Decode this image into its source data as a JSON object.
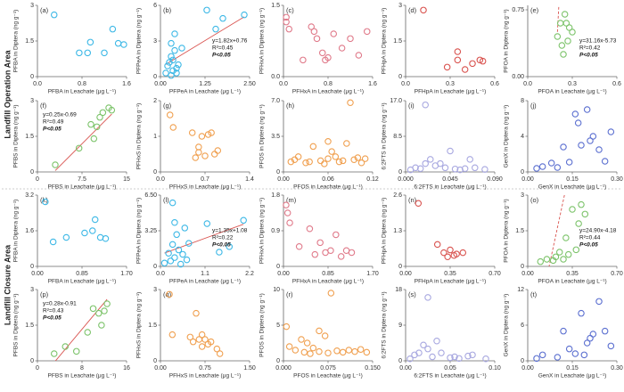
{
  "row_labels": [
    "Landfill Operation Area",
    "Landfill Closure Area"
  ],
  "chart_data": [
    {
      "type": "scatter",
      "label": "(a)",
      "xlabel": "PFBA in Leachate (μg L⁻¹)",
      "ylabel": "PFBA in Diptera (ng g⁻¹)",
      "color": "#3db8e6",
      "x": [
        0.3,
        0.75,
        0.9,
        0.95,
        1.2,
        1.35,
        1.45,
        1.55
      ],
      "values": [
        2.6,
        1.0,
        1.0,
        1.45,
        1.0,
        2.0,
        1.4,
        1.35
      ],
      "xlim": [
        0,
        1.6
      ],
      "xticks": [
        {
          "value": 0,
          "label": "0.0"
        },
        0.8,
        1.6
      ],
      "ylim": [
        0,
        3
      ],
      "yticks": [
        0,
        1.5,
        3
      ]
    },
    {
      "type": "scatter",
      "label": "(b)",
      "xlabel": "PFPeA in Leachate (μg L⁻¹)",
      "ylabel": "PFPeA in Diptera (ng g⁻¹)",
      "color": "#3db8e6",
      "x": [
        0.15,
        0.2,
        0.25,
        0.3,
        0.3,
        0.35,
        0.4,
        0.45,
        0.5,
        0.3,
        0.4,
        0.6,
        1.3,
        1.55,
        1.75,
        2.35,
        0.35,
        0.45
      ],
      "values": [
        0.3,
        0.9,
        1.2,
        0.1,
        1.7,
        0.5,
        2.2,
        0.3,
        1.0,
        2.8,
        3.6,
        2.4,
        5.6,
        4.0,
        4.9,
        5.2,
        1.4,
        0.7
      ],
      "xlim": [
        0,
        2.5
      ],
      "xticks": [
        {
          "value": 0,
          "label": "0.00"
        },
        1.25,
        {
          "value": 2.5,
          "label": "2.50"
        }
      ],
      "ylim": [
        0,
        6
      ],
      "yticks": [
        0,
        3,
        6
      ],
      "fit": {
        "slope": 1.82,
        "intercept": 0.76
      },
      "annotations": [
        "y=1.82x+0.76",
        "R²=0.45",
        "P<0.05"
      ]
    },
    {
      "type": "scatter",
      "label": "(c)",
      "xlabel": "PFHxA in Leachate (μg L⁻¹)",
      "ylabel": "PFHxA in Diptera (ng g⁻¹)",
      "color": "#e07a8a",
      "x": [
        0.05,
        0.05,
        0.1,
        0.35,
        0.55,
        0.6,
        0.7,
        0.8,
        0.75,
        0.9,
        1.05,
        1.2,
        1.35,
        1.5,
        0.5
      ],
      "values": [
        1.25,
        1.15,
        1.0,
        0.35,
        0.95,
        0.8,
        0.5,
        0.4,
        0.35,
        0.9,
        0.6,
        0.8,
        0.45,
        0.95,
        1.05
      ],
      "xlim": [
        0,
        1.6
      ],
      "xticks": [
        {
          "value": 0,
          "label": "0.0"
        },
        0.8,
        1.6
      ],
      "ylim": [
        0,
        1.5
      ],
      "yticks": [
        {
          "value": 0,
          "label": "0.0"
        },
        1.5
      ]
    },
    {
      "type": "scatter",
      "label": "(d)",
      "xlabel": "PFHpA in Leachate (μg L⁻¹)",
      "ylabel": "PFHpA in Diptera (ng g⁻¹)",
      "color": "#d9534f",
      "x": [
        0.12,
        0.28,
        0.35,
        0.35,
        0.4,
        0.45,
        0.5,
        0.52
      ],
      "values": [
        2.8,
        0.4,
        1.05,
        0.7,
        0.3,
        0.55,
        0.7,
        0.65
      ],
      "xlim": [
        0,
        0.6
      ],
      "xticks": [
        {
          "value": 0,
          "label": "0.0"
        },
        0.3,
        0.6
      ],
      "ylim": [
        0,
        3
      ],
      "yticks": [
        0,
        1.5,
        3
      ]
    },
    {
      "type": "scatter",
      "label": "(e)",
      "xlabel": "PFOA in Leachate (μg L⁻¹)",
      "ylabel": "PFOA in Diptera (ng g⁻¹)",
      "color": "#7cc36a",
      "x": [
        0.2,
        0.22,
        0.23,
        0.25,
        0.27,
        0.28,
        0.3,
        0.24,
        0.26
      ],
      "values": [
        0.45,
        0.6,
        0.35,
        0.7,
        0.4,
        0.55,
        0.5,
        0.25,
        0.6
      ],
      "xlim": [
        0,
        0.6
      ],
      "xticks": [
        {
          "value": 0,
          "label": "0.0"
        },
        0.3,
        0.6
      ],
      "ylim": [
        0,
        0.8
      ],
      "yticks": [
        {
          "value": 0,
          "label": "0.00"
        },
        0.75
      ],
      "fit": {
        "slope": 31.16,
        "intercept": -5.73
      },
      "annotations": [
        "y=31.16x-5.73",
        "R²=0.42",
        "P<0.05"
      ]
    },
    {
      "type": "scatter",
      "label": "(f)",
      "xlabel": "PFBS in Leachate (μg L⁻¹)",
      "ylabel": "PFBS in Diptera (ng g⁻¹)",
      "color": "#7cc36a",
      "x": [
        3,
        7,
        9.5,
        10,
        10.5,
        11,
        12,
        12.5,
        9
      ],
      "values": [
        0.3,
        1.0,
        1.4,
        1.9,
        2.3,
        2.5,
        2.7,
        2.6,
        2.0
      ],
      "xlim": [
        0,
        15
      ],
      "xticks": [
        0,
        7.5,
        15
      ],
      "ylim": [
        0,
        3
      ],
      "yticks": [
        0,
        1.5,
        3
      ],
      "fit": {
        "slope": 0.25,
        "intercept": -0.69
      },
      "annotations": [
        "y=0.25x-0.69",
        "R²=0.49",
        "P<0.05"
      ]
    },
    {
      "type": "scatter",
      "label": "(g)",
      "xlabel": "PFHxS in Leachate (μg L⁻¹)",
      "ylabel": "PFHxS in Diptera (ng g⁻¹)",
      "color": "#f0a050",
      "x": [
        0.15,
        0.2,
        0.5,
        0.55,
        0.6,
        0.65,
        0.7,
        0.75,
        0.8,
        0.85,
        0.9,
        0.6
      ],
      "values": [
        1.6,
        1.25,
        1.1,
        0.4,
        0.7,
        1.0,
        0.45,
        1.05,
        1.1,
        0.5,
        0.6,
        0.55
      ],
      "xlim": [
        0,
        1.4
      ],
      "xticks": [
        {
          "value": 0,
          "label": "0.0"
        },
        0.7,
        1.4
      ],
      "ylim": [
        0,
        2
      ],
      "yticks": [
        0,
        1,
        2
      ]
    },
    {
      "type": "scatter",
      "label": "(h)",
      "xlabel": "PFOS in Leachate (μg L⁻¹)",
      "ylabel": "PFOS in Diptera (ng g⁻¹)",
      "color": "#f0a050",
      "x": [
        0.01,
        0.015,
        0.02,
        0.03,
        0.035,
        0.04,
        0.05,
        0.055,
        0.06,
        0.065,
        0.07,
        0.075,
        0.08,
        0.085,
        0.09,
        0.095,
        0.1,
        0.105,
        0.11,
        0.06
      ],
      "values": [
        1,
        1.2,
        1.5,
        0.9,
        1.0,
        2.5,
        1.1,
        0.8,
        1.3,
        2.0,
        1.5,
        1.0,
        1.1,
        2.8,
        6.8,
        1.2,
        1.4,
        0.9,
        1.3,
        3.0
      ],
      "xlim": [
        0,
        0.12
      ],
      "xticks": [
        {
          "value": 0,
          "label": "0.00"
        },
        0.06,
        0.12
      ],
      "ylim": [
        0,
        7
      ],
      "yticks": [
        0,
        3.5,
        {
          "value": 7,
          "label": "7.0"
        }
      ]
    },
    {
      "type": "scatter",
      "label": "(i)",
      "xlabel": "6:2FTS in Leachate (μg L⁻¹)",
      "ylabel": "6:2FTS in Diptera (ng g⁻¹)",
      "color": "#a8a8e0",
      "x": [
        0.005,
        0.01,
        0.015,
        0.02,
        0.025,
        0.03,
        0.035,
        0.04,
        0.045,
        0.05,
        0.055,
        0.06,
        0.065,
        0.07,
        0.08,
        0.02
      ],
      "values": [
        0.5,
        1,
        0.8,
        2,
        3,
        1.5,
        2,
        1,
        5,
        0.7,
        0.5,
        0.8,
        3,
        1,
        0.6,
        16
      ],
      "xlim": [
        0,
        0.09
      ],
      "xticks": [
        {
          "value": 0,
          "label": "0.000"
        },
        0.045,
        {
          "value": 0.09,
          "label": "0.090"
        }
      ],
      "ylim": [
        0,
        17
      ],
      "yticks": [
        0,
        8.5,
        {
          "value": 17,
          "label": "17.0"
        }
      ]
    },
    {
      "type": "scatter",
      "label": "(j)",
      "xlabel": "GenX in Leachate (μg L⁻¹)",
      "ylabel": "GenX in Diptera (ng g⁻¹)",
      "color": "#5b6fd0",
      "x": [
        0.03,
        0.05,
        0.08,
        0.1,
        0.12,
        0.14,
        0.16,
        0.18,
        0.2,
        0.22,
        0.24,
        0.26,
        0.28,
        0.17,
        0.21
      ],
      "values": [
        0.4,
        0.6,
        1,
        0.5,
        2.8,
        1.1,
        6.5,
        3,
        7,
        4,
        2.5,
        1.2,
        4.5,
        5.5,
        3.5
      ],
      "xlim": [
        0,
        0.3
      ],
      "xticks": [
        {
          "value": 0,
          "label": "0.00"
        },
        0.15,
        {
          "value": 0.3,
          "label": "0.30"
        }
      ],
      "ylim": [
        0,
        8
      ],
      "yticks": [
        0,
        4,
        8
      ]
    },
    {
      "type": "scatter",
      "label": "(k)",
      "xlabel": "PFBA in Leachate (μg L⁻¹)",
      "ylabel": "PFBA in Diptera (ng g⁻¹)",
      "color": "#3db8e6",
      "x": [
        0.15,
        0.3,
        0.55,
        0.9,
        1.05,
        1.2,
        1.3,
        1.1
      ],
      "values": [
        2.9,
        1.1,
        1.3,
        1.5,
        1.6,
        1.3,
        1.25,
        2.1
      ],
      "xlim": [
        0,
        1.7
      ],
      "xticks": [
        {
          "value": 0,
          "label": "0.00"
        },
        0.85,
        {
          "value": 1.7,
          "label": "1.70"
        }
      ],
      "ylim": [
        0,
        3.2
      ],
      "yticks": [
        0,
        1.6,
        3.2
      ]
    },
    {
      "type": "scatter",
      "label": "(l)",
      "xlabel": "PFPeA in Leachate (μg L⁻¹)",
      "ylabel": "PFPeA in Diptera (ng g⁻¹)",
      "color": "#3db8e6",
      "x": [
        0.1,
        0.2,
        0.25,
        0.3,
        0.35,
        0.4,
        0.45,
        0.5,
        0.55,
        0.6,
        0.65,
        0.7,
        0.35,
        1.15,
        1.45,
        1.7,
        2.05,
        0.3
      ],
      "values": [
        0.3,
        1.2,
        0.5,
        2.0,
        0.8,
        2.9,
        1.5,
        0.2,
        1.1,
        3.5,
        0.6,
        2.1,
        4.0,
        3.9,
        1.3,
        1.8,
        4.2,
        5.8
      ],
      "xlim": [
        0,
        2.2
      ],
      "xticks": [
        {
          "value": 0,
          "label": "0.0"
        },
        1.1,
        2.2
      ],
      "ylim": [
        0,
        6.5
      ],
      "yticks": [
        0,
        3.25,
        {
          "value": 6.5,
          "label": "6.50"
        }
      ],
      "fit": {
        "slope": 1.35,
        "intercept": 1.08
      },
      "annotations": [
        "y=1.35x+1.08",
        "R²=0.22",
        "P<0.05"
      ]
    },
    {
      "type": "scatter",
      "label": "(m)",
      "xlabel": "PFHxA in Leachate (μg L⁻¹)",
      "ylabel": "PFHxA in Diptera (ng g⁻¹)",
      "color": "#e07a8a",
      "x": [
        0.05,
        0.08,
        0.12,
        0.3,
        0.5,
        0.6,
        0.7,
        0.8,
        0.9,
        1.0,
        1.1,
        1.2,
        1.3
      ],
      "values": [
        1.55,
        1.35,
        1.1,
        0.5,
        0.95,
        0.3,
        0.6,
        0.35,
        0.4,
        0.8,
        0.25,
        0.4,
        0.35
      ],
      "xlim": [
        0,
        1.7
      ],
      "xticks": [
        {
          "value": 0,
          "label": "0.00"
        },
        0.85,
        {
          "value": 1.7,
          "label": "1.70"
        }
      ],
      "ylim": [
        0,
        1.8
      ],
      "yticks": [
        0,
        0.9,
        1.8
      ]
    },
    {
      "type": "scatter",
      "label": "(n)",
      "xlabel": "PFHpA in Leachate (μg L⁻¹)",
      "ylabel": "PFHpA in Diptera (ng g⁻¹)",
      "color": "#d9534f",
      "x": [
        0.1,
        0.25,
        0.3,
        0.33,
        0.35,
        0.38,
        0.4,
        0.45
      ],
      "values": [
        2.3,
        0.8,
        0.5,
        0.35,
        0.6,
        0.4,
        0.45,
        0.5
      ],
      "xlim": [
        0,
        0.7
      ],
      "xticks": [
        {
          "value": 0,
          "label": "0.00"
        },
        0.35,
        {
          "value": 0.7,
          "label": "0.70"
        }
      ],
      "ylim": [
        0,
        2.6
      ],
      "yticks": [
        0,
        1.3,
        2.6
      ]
    },
    {
      "type": "scatter",
      "label": "(o)",
      "xlabel": "PFOA in Leachate (μg L⁻¹)",
      "ylabel": "PFOA in Diptera (ng g⁻¹)",
      "color": "#7cc36a",
      "x": [
        0.1,
        0.15,
        0.2,
        0.22,
        0.25,
        0.28,
        0.3,
        0.32,
        0.35,
        0.4,
        0.45,
        0.38,
        0.42
      ],
      "values": [
        0.2,
        0.3,
        0.25,
        0.4,
        0.6,
        0.3,
        1.2,
        0.5,
        2.4,
        1.8,
        2.2,
        0.7,
        2.6
      ],
      "xlim": [
        0,
        0.7
      ],
      "xticks": [
        {
          "value": 0,
          "label": "0.00"
        },
        0.35,
        {
          "value": 0.7,
          "label": "0.70"
        }
      ],
      "ylim": [
        0,
        3
      ],
      "yticks": [
        0,
        1.5,
        3
      ],
      "fit": {
        "slope": 24.9,
        "intercept": -4.18
      },
      "annotations": [
        "y=24.90x-4.18",
        "R²=0.44",
        "P<0.05"
      ]
    },
    {
      "type": "scatter",
      "label": "(p)",
      "xlabel": "PFBS in Leachate (μg L⁻¹)",
      "ylabel": "PFBS in Diptera (ng g⁻¹)",
      "color": "#7cc36a",
      "x": [
        3,
        5,
        7,
        9,
        10,
        11,
        12,
        12.5,
        11.5
      ],
      "values": [
        0.3,
        0.6,
        0.4,
        1.2,
        2.2,
        2.0,
        2.1,
        2.4,
        1.5
      ],
      "xlim": [
        0,
        16
      ],
      "xticks": [
        0,
        8,
        16
      ],
      "ylim": [
        0,
        3
      ],
      "yticks": [
        0,
        1.5,
        3
      ],
      "fit": {
        "slope": 0.28,
        "intercept": -0.91
      },
      "annotations": [
        "y=0.28x-0.91",
        "R²=0.43",
        "P<0.05"
      ]
    },
    {
      "type": "scatter",
      "label": "(q)",
      "xlabel": "PFHxS in Leachate (μg L⁻¹)",
      "ylabel": "PFHxS in Diptera (ng g⁻¹)",
      "color": "#f0a050",
      "x": [
        0.15,
        0.2,
        0.5,
        0.55,
        0.6,
        0.65,
        0.7,
        0.75,
        0.8,
        0.85,
        0.95,
        1.0,
        0.7
      ],
      "values": [
        2.8,
        1.1,
        1.0,
        0.8,
        2.0,
        0.9,
        1.1,
        0.9,
        0.7,
        0.8,
        0.5,
        0.3,
        0.6
      ],
      "xlim": [
        0,
        1.5
      ],
      "xticks": [
        {
          "value": 0,
          "label": "0.00"
        },
        0.75,
        {
          "value": 1.5,
          "label": "1.50"
        }
      ],
      "ylim": [
        0,
        3
      ],
      "yticks": [
        0,
        1.5,
        3
      ]
    },
    {
      "type": "scatter",
      "label": "(r)",
      "xlabel": "PFOS in Leachate (μg L⁻¹)",
      "ylabel": "PFOS in Diptera (ng g⁻¹)",
      "color": "#f0a050",
      "x": [
        0.005,
        0.01,
        0.02,
        0.03,
        0.035,
        0.04,
        0.045,
        0.05,
        0.06,
        0.07,
        0.075,
        0.08,
        0.09,
        0.1,
        0.11,
        0.12,
        0.13,
        0.14,
        0.06
      ],
      "values": [
        4.8,
        2,
        1.5,
        3,
        1.2,
        2.5,
        1,
        1.8,
        1.3,
        3.5,
        1.1,
        9.5,
        1.4,
        1.2,
        1.5,
        1.3,
        1.6,
        1.2,
        4.2
      ],
      "xlim": [
        0,
        0.15
      ],
      "xticks": [
        {
          "value": 0,
          "label": "0.000"
        },
        0.075,
        {
          "value": 0.15,
          "label": "0.150"
        }
      ],
      "ylim": [
        0,
        10
      ],
      "yticks": [
        0,
        5,
        10
      ]
    },
    {
      "type": "scatter",
      "label": "(s)",
      "xlabel": "6:2FTS in Leachate (μg L⁻¹)",
      "ylabel": "6:2FTS in Diptera (ng g⁻¹)",
      "color": "#a8a8e0",
      "x": [
        0.005,
        0.01,
        0.015,
        0.02,
        0.025,
        0.03,
        0.035,
        0.04,
        0.05,
        0.055,
        0.06,
        0.07,
        0.075,
        0.09,
        0.025
      ],
      "values": [
        0.5,
        1.5,
        2,
        4,
        3,
        1,
        5,
        2,
        0.8,
        1,
        0.6,
        1.2,
        1.5,
        0.5,
        16
      ],
      "xlim": [
        0,
        0.1
      ],
      "xticks": [
        {
          "value": 0,
          "label": "0.00"
        },
        0.05,
        {
          "value": 0.1,
          "label": "0.10"
        }
      ],
      "ylim": [
        0,
        18
      ],
      "yticks": [
        0,
        9,
        18
      ]
    },
    {
      "type": "scatter",
      "label": "(t)",
      "xlabel": "GenX in Leachate (μg L⁻¹)",
      "ylabel": "GenX in Diptera (ng g⁻¹)",
      "color": "#5b6fd0",
      "x": [
        0.03,
        0.05,
        0.1,
        0.12,
        0.14,
        0.16,
        0.18,
        0.2,
        0.22,
        0.24,
        0.26,
        0.28,
        0.19,
        0.21
      ],
      "values": [
        0.4,
        1,
        0.6,
        5,
        2,
        1.2,
        8,
        3,
        4.5,
        10,
        5,
        2.5,
        1,
        3.8
      ],
      "xlim": [
        0,
        0.3
      ],
      "xticks": [
        {
          "value": 0,
          "label": "0.00"
        },
        0.15,
        {
          "value": 0.3,
          "label": "0.30"
        }
      ],
      "ylim": [
        0,
        12
      ],
      "yticks": [
        0,
        6,
        12
      ]
    }
  ]
}
